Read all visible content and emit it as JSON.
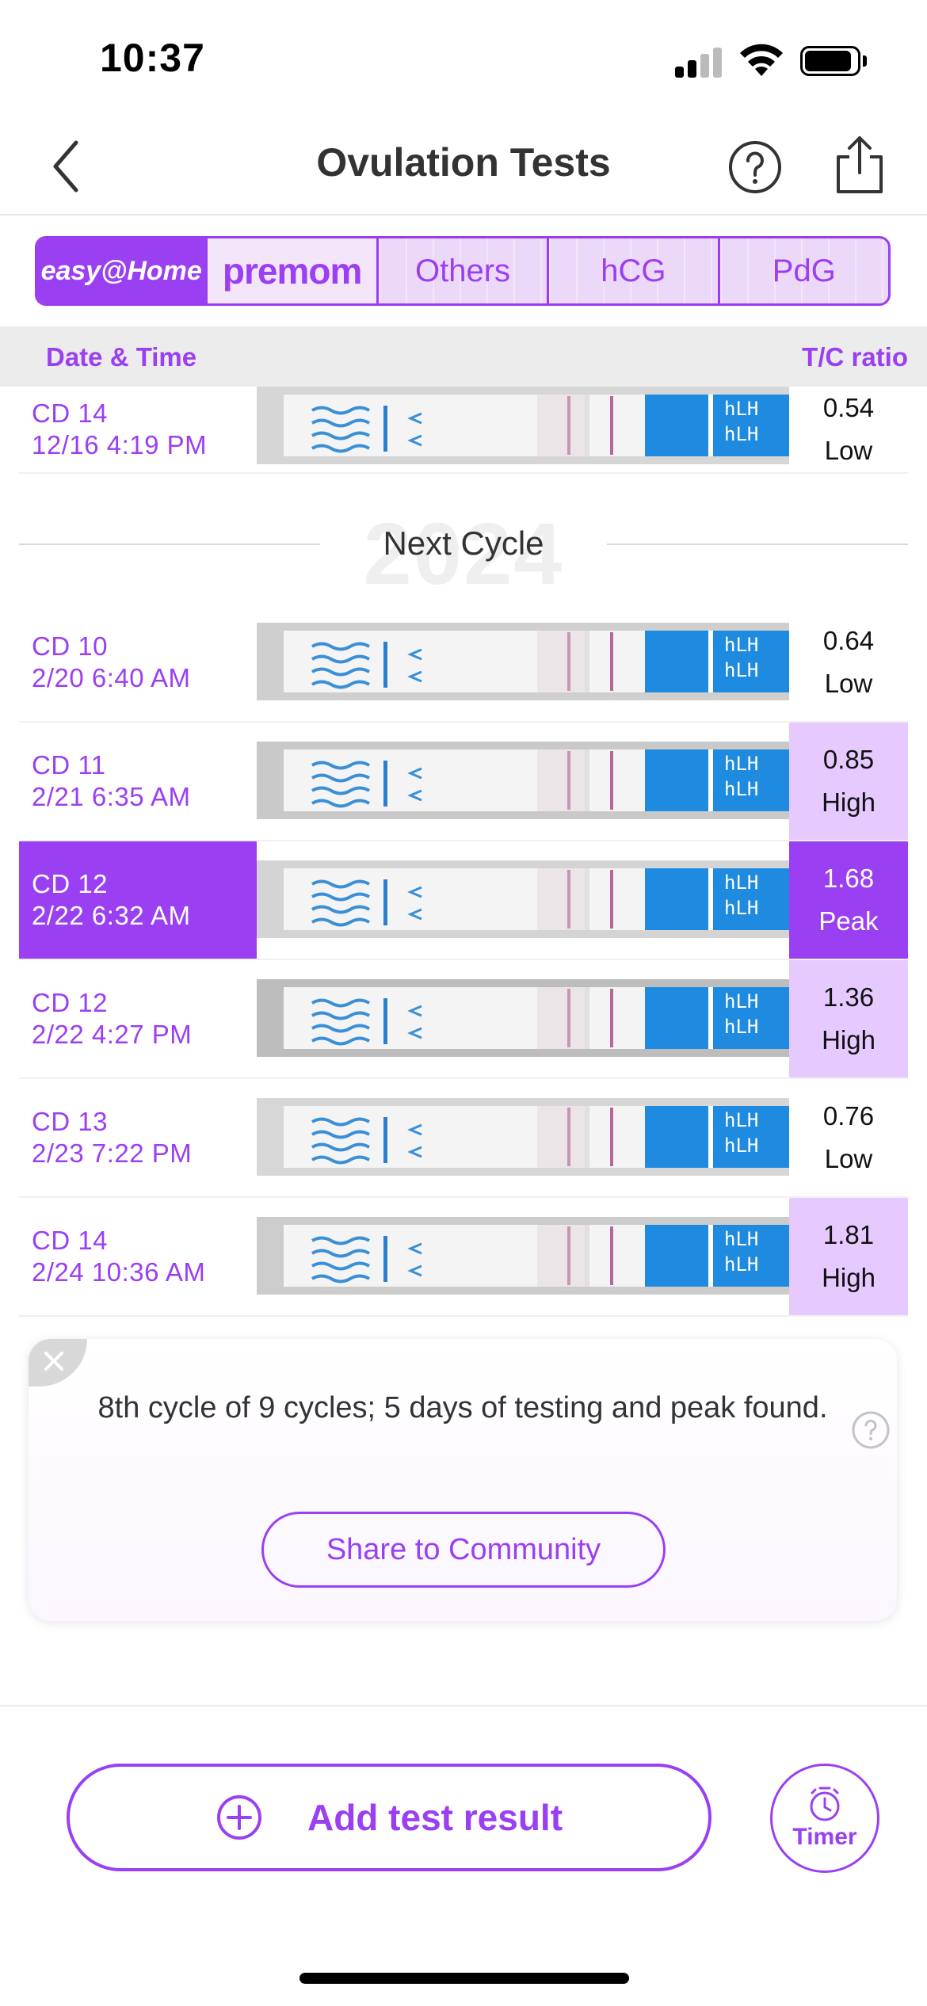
{
  "status_bar": {
    "time": "10:37"
  },
  "nav": {
    "title": "Ovulation Tests"
  },
  "brand_tabs": [
    {
      "label": "easy@Home"
    },
    {
      "label": "premom"
    },
    {
      "label": "Others"
    },
    {
      "label": "hCG"
    },
    {
      "label": "PdG"
    }
  ],
  "columns": {
    "left": "Date & Time",
    "right": "T/C ratio"
  },
  "previous_rows": [
    {
      "cd": "CD 14",
      "datetime": "12/16 4:19 PM",
      "ratio": "0.54",
      "level": "Low"
    }
  ],
  "divider": {
    "year": "2024",
    "label": "Next Cycle"
  },
  "rows": [
    {
      "cd": "CD 10",
      "datetime": "2/20 6:40 AM",
      "ratio": "0.64",
      "level": "Low"
    },
    {
      "cd": "CD 11",
      "datetime": "2/21 6:35 AM",
      "ratio": "0.85",
      "level": "High"
    },
    {
      "cd": "CD 12",
      "datetime": "2/22 6:32 AM",
      "ratio": "1.68",
      "level": "Peak"
    },
    {
      "cd": "CD 12",
      "datetime": "2/22 4:27 PM",
      "ratio": "1.36",
      "level": "High"
    },
    {
      "cd": "CD 13",
      "datetime": "2/23 7:22 PM",
      "ratio": "0.76",
      "level": "Low"
    },
    {
      "cd": "CD 14",
      "datetime": "2/24 10:36 AM",
      "ratio": "1.81",
      "level": "High"
    }
  ],
  "strip_label": "hLH",
  "summary": {
    "text": "8th cycle of 9 cycles; 5 days of testing and peak found.",
    "share_label": "Share to Community"
  },
  "actions": {
    "add_label": "Add test result",
    "timer_label": "Timer"
  },
  "colors": {
    "accent": "#9b3ff2",
    "high_bg": "#e6caff",
    "peak_bg": "#9b3ff2"
  }
}
